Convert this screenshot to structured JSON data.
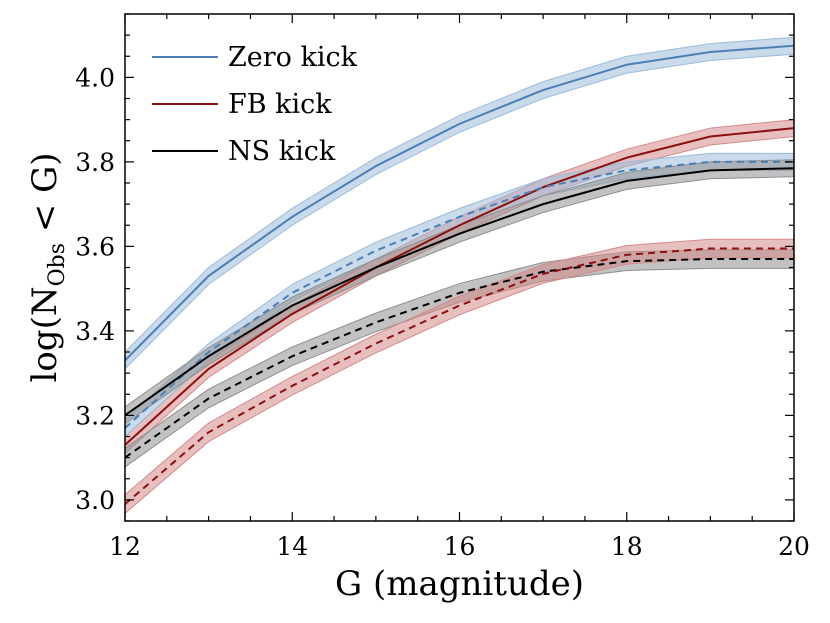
{
  "chart_data": {
    "type": "line",
    "title": "",
    "xlabel": "G (magnitude)",
    "ylabel_main": "log(N",
    "ylabel_sub": "Obs",
    "ylabel_tail": " < G)",
    "xlim": [
      12,
      20
    ],
    "ylim": [
      2.95,
      4.15
    ],
    "xticks": [
      12,
      14,
      16,
      18,
      20
    ],
    "yticks": [
      3.0,
      3.2,
      3.4,
      3.6,
      3.8,
      4.0
    ],
    "x": [
      12,
      13,
      14,
      15,
      16,
      17,
      18,
      19,
      20
    ],
    "grid": false,
    "legend_position": "top-left",
    "legend": [
      {
        "label": "Zero kick",
        "color": "#4a7fb5"
      },
      {
        "label": "FB kick",
        "color": "#8b1010"
      },
      {
        "label": "NS kick",
        "color": "#000000"
      }
    ],
    "series": [
      {
        "name": "Zero kick solid",
        "line": "solid",
        "color": "#4a7fb5",
        "band_color": "#9dbbdb",
        "band": 0.02,
        "values": [
          3.33,
          3.53,
          3.67,
          3.79,
          3.89,
          3.97,
          4.03,
          4.06,
          4.075
        ]
      },
      {
        "name": "FB kick solid",
        "line": "solid",
        "color": "#8b1010",
        "band_color": "#d58a8a",
        "band": 0.02,
        "values": [
          3.13,
          3.31,
          3.44,
          3.55,
          3.65,
          3.74,
          3.81,
          3.86,
          3.88
        ]
      },
      {
        "name": "Zero kick dashed",
        "line": "dashed",
        "color": "#4a7fb5",
        "band_color": "#9dbbdb",
        "band": 0.02,
        "values": [
          3.17,
          3.35,
          3.49,
          3.59,
          3.67,
          3.74,
          3.78,
          3.8,
          3.8
        ]
      },
      {
        "name": "NS kick solid",
        "line": "solid",
        "color": "#000000",
        "band_color": "#8f8f8f",
        "band": 0.02,
        "values": [
          3.2,
          3.34,
          3.46,
          3.55,
          3.63,
          3.7,
          3.755,
          3.78,
          3.785
        ]
      },
      {
        "name": "NS kick dashed",
        "line": "dashed",
        "color": "#000000",
        "band_color": "#8f8f8f",
        "band": 0.022,
        "values": [
          3.1,
          3.24,
          3.34,
          3.42,
          3.49,
          3.54,
          3.565,
          3.57,
          3.57
        ]
      },
      {
        "name": "FB kick dashed",
        "line": "dashed",
        "color": "#8b1010",
        "band_color": "#d58a8a",
        "band": 0.022,
        "values": [
          2.99,
          3.16,
          3.27,
          3.37,
          3.46,
          3.535,
          3.58,
          3.595,
          3.595
        ]
      }
    ]
  }
}
